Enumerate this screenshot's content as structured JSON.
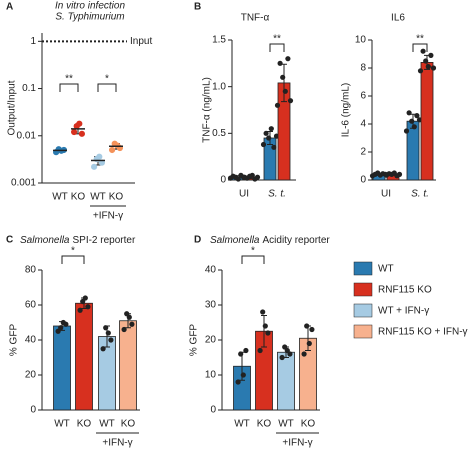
{
  "chart_data": [
    {
      "panel": "A",
      "type": "scatter",
      "title_lines": [
        "In vitro infection",
        "S. Typhimurium"
      ],
      "ylabel": "Output/Input",
      "log_scale": true,
      "ylim": [
        0.001,
        1.5
      ],
      "yticks": [
        0.001,
        0.01,
        0.1,
        1
      ],
      "categories": [
        "WT",
        "KO",
        "WT",
        "KO"
      ],
      "group_label": "+IFN-γ",
      "colors": [
        "#2a7ab0",
        "#d7301f",
        "#a6cbe3",
        "#f4925a"
      ],
      "values": [
        0.0049,
        0.014,
        0.003,
        0.006
      ],
      "errors": [
        0.0004,
        0.003,
        0.0006,
        0.0008
      ],
      "points": [
        [
          0.0045,
          0.0052,
          0.0048,
          0.005
        ],
        [
          0.012,
          0.016,
          0.018,
          0.011
        ],
        [
          0.0022,
          0.0032,
          0.0036,
          0.0027
        ],
        [
          0.005,
          0.0068,
          0.0062,
          0.0055
        ]
      ],
      "reference_line": {
        "value": 1,
        "label": "Input"
      },
      "annotations": [
        "**",
        "*"
      ]
    },
    {
      "panel": "B",
      "type": "grouped_bar",
      "title": "TNF-α",
      "title_color": "#2b8cbe",
      "ylabel": "TNF-α (ng/mL)",
      "ylim": [
        0,
        1.5
      ],
      "yticks": [
        0,
        0.5,
        {
          "value": 1,
          "label": "1.0"
        },
        1.5
      ],
      "categories": [
        "UI",
        "S. t."
      ],
      "point_color": "#222",
      "series": [
        {
          "color": "#2a7ab0",
          "values": [
            0.03,
            0.45
          ],
          "errors": [
            0.015,
            0.07
          ],
          "points": [
            [
              0.02,
              0.04,
              0.03,
              0.01,
              0.05,
              0.03
            ],
            [
              0.38,
              0.5,
              0.45,
              0.55,
              0.35,
              0.47
            ]
          ]
        },
        {
          "color": "#d7301f",
          "values": [
            0.03,
            1.04
          ],
          "errors": [
            0.015,
            0.2
          ],
          "points": [
            [
              0.03,
              0.02,
              0.04,
              0.05,
              0.01,
              0.03
            ],
            [
              0.8,
              1.25,
              1.1,
              0.95,
              1.3,
              0.85
            ]
          ]
        }
      ],
      "annotations": [
        "**"
      ]
    },
    {
      "type": "grouped_bar",
      "title": "IL6",
      "title_color": "#2b8cbe",
      "ylabel": "IL-6 (ng/mL)",
      "ylim": [
        0,
        10
      ],
      "yticks": [
        0,
        2,
        4,
        6,
        8,
        10
      ],
      "categories": [
        "UI",
        "S. t."
      ],
      "point_color": "#222",
      "series": [
        {
          "color": "#2a7ab0",
          "values": [
            0.4,
            4.2
          ],
          "errors": [
            0.07,
            0.5
          ],
          "points": [
            [
              0.3,
              0.4,
              0.5,
              0.35,
              0.45,
              0.4
            ],
            [
              3.5,
              4.8,
              4.2,
              3.8,
              4.6,
              4.3
            ]
          ]
        },
        {
          "color": "#d7301f",
          "values": [
            0.4,
            8.4
          ],
          "errors": [
            0.07,
            0.5
          ],
          "points": [
            [
              0.35,
              0.45,
              0.4,
              0.5,
              0.3,
              0.4
            ],
            [
              7.8,
              9.2,
              8.5,
              8.1,
              8.9,
              8.0
            ]
          ]
        }
      ],
      "annotations": [
        "**"
      ]
    },
    {
      "panel": "C",
      "type": "bar",
      "title_italic": "Salmonella",
      "title": "SPI-2 reporter",
      "ylabel": "% GFP",
      "ylim": [
        0,
        80
      ],
      "yticks": [
        0,
        20,
        40,
        60,
        80
      ],
      "categories": [
        "WT",
        "KO",
        "WT",
        "KO"
      ],
      "group_label": "+IFN-γ",
      "point_color": "#222",
      "colors": [
        "#2a7ab0",
        "#d7301f",
        "#a6cbe3",
        "#f7b18e"
      ],
      "values": [
        48,
        61,
        42,
        51
      ],
      "errors": [
        2.5,
        3,
        6,
        4
      ],
      "points": [
        [
          45,
          47,
          50,
          49
        ],
        [
          57,
          62,
          64,
          59
        ],
        [
          35,
          47,
          44,
          40
        ],
        [
          46,
          55,
          53,
          49
        ]
      ],
      "annotations": [
        "*"
      ]
    },
    {
      "panel": "D",
      "type": "bar",
      "title_italic": "Salmonella",
      "title": "Acidity reporter",
      "ylabel": "% GFP",
      "ylim": [
        0,
        40
      ],
      "yticks": [
        0,
        10,
        20,
        30,
        40
      ],
      "categories": [
        "WT",
        "KO",
        "WT",
        "KO"
      ],
      "group_label": "+IFN-γ",
      "point_color": "#222",
      "colors": [
        "#2a7ab0",
        "#d7301f",
        "#a6cbe3",
        "#f7b18e"
      ],
      "values": [
        12.5,
        22.5,
        16.5,
        20.5
      ],
      "errors": [
        4,
        4.5,
        1.5,
        3.5
      ],
      "points": [
        [
          8,
          16,
          10,
          17
        ],
        [
          17,
          28,
          24,
          22
        ],
        [
          15,
          18,
          17,
          16
        ],
        [
          16,
          24,
          19,
          23
        ]
      ],
      "annotations": [
        "*"
      ]
    }
  ],
  "legend": {
    "items": [
      {
        "name": "WT",
        "color": "#2a7ab0"
      },
      {
        "name": "RNF115 KO",
        "color": "#d7301f"
      },
      {
        "name": "WT + IFN-γ",
        "color": "#a6cbe3"
      },
      {
        "name": "RNF115 KO + IFN-γ",
        "color": "#f7b18e"
      }
    ]
  }
}
